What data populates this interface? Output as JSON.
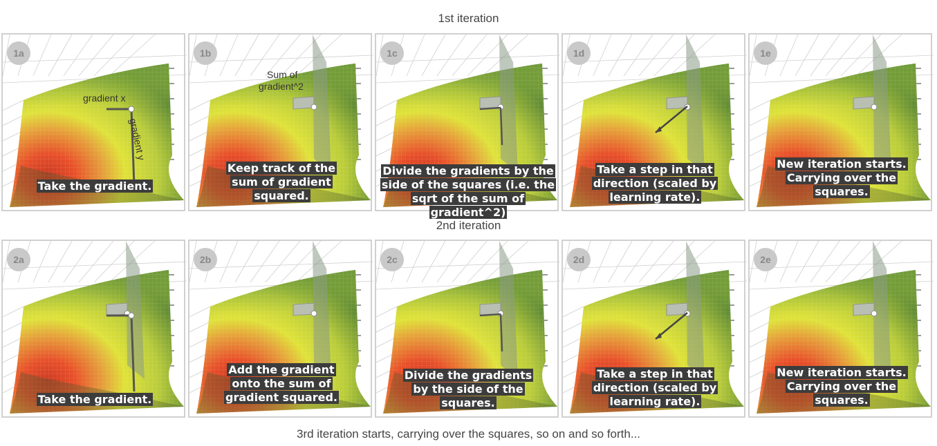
{
  "iterations": [
    {
      "title": "1st iteration",
      "panels": [
        {
          "label": "1a",
          "caption_lines": [
            "Take the gradient."
          ]
        },
        {
          "label": "1b",
          "caption_lines": [
            "Keep track of the",
            "sum of gradient",
            "squared."
          ]
        },
        {
          "label": "1c",
          "caption_lines": [
            "Divide the gradients by the",
            "side of the squares (i.e. the",
            "sqrt of the sum of gradient^2)"
          ]
        },
        {
          "label": "1d",
          "caption_lines": [
            "Take a step in that",
            "direction (scaled by",
            "learning rate)."
          ]
        },
        {
          "label": "1e",
          "caption_lines": [
            "New iteration starts.",
            "Carrying over the",
            "squares."
          ]
        }
      ]
    },
    {
      "title": "2nd iteration",
      "panels": [
        {
          "label": "2a",
          "caption_lines": [
            "Take the gradient."
          ]
        },
        {
          "label": "2b",
          "caption_lines": [
            "Add the gradient",
            "onto the sum of",
            "gradient squared."
          ]
        },
        {
          "label": "2c",
          "caption_lines": [
            "Divide the gradients",
            "by the side of the",
            "squares."
          ]
        },
        {
          "label": "2d",
          "caption_lines": [
            "Take a step in that",
            "direction (scaled by",
            "learning rate)."
          ]
        },
        {
          "label": "2e",
          "caption_lines": [
            "New iteration starts.",
            "Carrying over the",
            "squares."
          ]
        }
      ]
    }
  ],
  "annotations": {
    "gradient_x": "gradient x",
    "gradient_y": "gradient y",
    "sum_of": "Sum of",
    "gradient_sq": "gradient^2"
  },
  "footer": "3rd iteration starts, carrying over the squares, so on and so forth...",
  "colors": {
    "surface_red": "#e8502a",
    "surface_yellow": "#dfe23a",
    "surface_green": "#6f9a3a",
    "caption_bg": "#3c3c3c",
    "square": "#b9bfb2"
  }
}
